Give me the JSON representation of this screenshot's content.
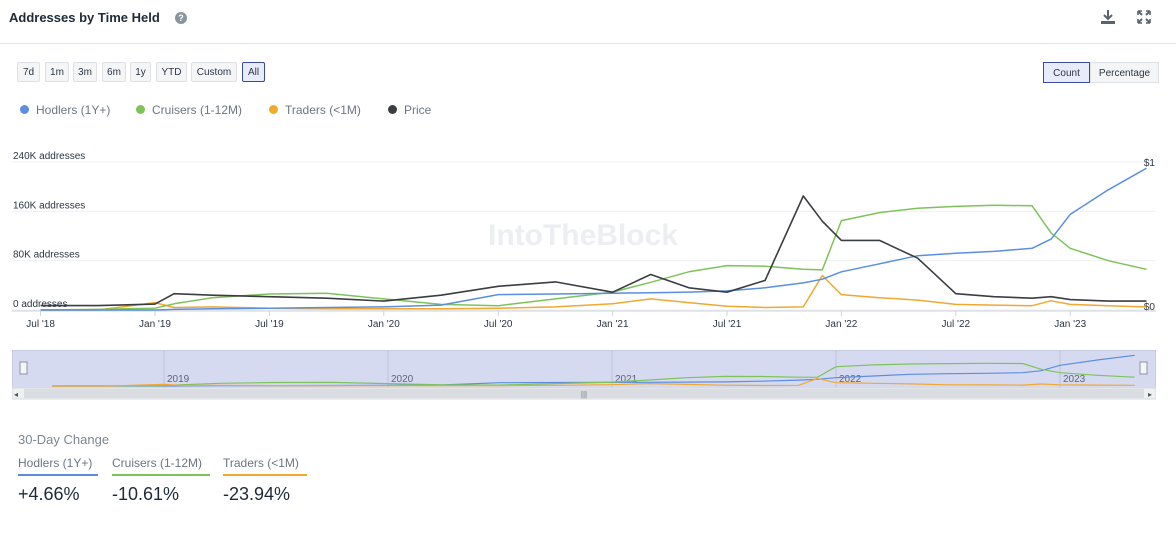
{
  "header": {
    "title": "Addresses by Time Held",
    "help_icon": "question-circle-icon",
    "download_icon": "download-icon",
    "expand_icon": "expand-icon"
  },
  "range_buttons": [
    "7d",
    "1m",
    "3m",
    "6m",
    "1y",
    "YTD",
    "Custom",
    "All"
  ],
  "range_selected": "All",
  "mode_buttons": [
    "Count",
    "Percentage"
  ],
  "mode_selected": "Count",
  "legend": [
    {
      "label": "Hodlers (1Y+)",
      "color": "#5b8ee0"
    },
    {
      "label": "Cruisers (1-12M)",
      "color": "#7ec35a"
    },
    {
      "label": "Traders (<1M)",
      "color": "#f0a830"
    },
    {
      "label": "Price",
      "color": "#3a3d42"
    }
  ],
  "watermark": "IntoTheBlock",
  "change": {
    "title": "30-Day Change",
    "items": [
      {
        "label": "Hodlers (1Y+)",
        "value": "+4.66%",
        "color": "#5b8ee0"
      },
      {
        "label": "Cruisers (1-12M)",
        "value": "-10.61%",
        "color": "#7ec35a"
      },
      {
        "label": "Traders (<1M)",
        "value": "-23.94%",
        "color": "#f0a830"
      }
    ]
  },
  "chart_data": {
    "type": "line",
    "xlabel": "",
    "ylabel": "",
    "x_ticks": [
      "Jul '18",
      "Jan '19",
      "Jul '19",
      "Jan '20",
      "Jul '20",
      "Jan '21",
      "Jul '21",
      "Jan '22",
      "Jul '22",
      "Jan '23"
    ],
    "y_ticks": [
      "0 addresses",
      "80K addresses",
      "160K addresses",
      "240K addresses"
    ],
    "y_tick_values": [
      0,
      80000,
      160000,
      240000
    ],
    "ylim": [
      0,
      240000
    ],
    "right_axis_ticks": [
      "$0",
      "$1"
    ],
    "right_axis_values": [
      0,
      1
    ],
    "grid": true,
    "legend_position": "top-left",
    "x": [
      "2018-07",
      "2018-10",
      "2019-01",
      "2019-02",
      "2019-04",
      "2019-07",
      "2019-10",
      "2020-01",
      "2020-04",
      "2020-07",
      "2020-10",
      "2021-01",
      "2021-03",
      "2021-05",
      "2021-07",
      "2021-09",
      "2021-11",
      "2021-12",
      "2022-01",
      "2022-03",
      "2022-05",
      "2022-07",
      "2022-09",
      "2022-11",
      "2022-12",
      "2023-01",
      "2023-03",
      "2023-05"
    ],
    "series": [
      {
        "name": "Hodlers (1Y+)",
        "axis": "left",
        "values": [
          0,
          0,
          0,
          1000,
          2000,
          3000,
          4000,
          5000,
          8000,
          25000,
          26000,
          27000,
          28000,
          29000,
          31000,
          36000,
          44000,
          50000,
          62000,
          75000,
          88000,
          92000,
          95000,
          100000,
          115000,
          155000,
          195000,
          230000
        ]
      },
      {
        "name": "Cruisers (1-12M)",
        "axis": "left",
        "values": [
          0,
          1000,
          3000,
          10000,
          20000,
          26000,
          27000,
          18000,
          9000,
          7000,
          18000,
          29000,
          45000,
          62000,
          72000,
          71000,
          66000,
          65000,
          145000,
          158000,
          165000,
          168000,
          170000,
          169000,
          125000,
          100000,
          80000,
          66000
        ]
      },
      {
        "name": "Traders (<1M)",
        "axis": "left",
        "values": [
          0,
          0,
          12000,
          4000,
          5000,
          3000,
          2000,
          2000,
          2000,
          3000,
          5000,
          10000,
          18000,
          12000,
          6000,
          4000,
          5000,
          56000,
          25000,
          20000,
          16000,
          9000,
          8000,
          7000,
          15000,
          9000,
          7000,
          5000
        ]
      },
      {
        "name": "Price",
        "axis": "right",
        "values": [
          0.03,
          0.03,
          0.04,
          0.11,
          0.1,
          0.09,
          0.08,
          0.06,
          0.1,
          0.16,
          0.19,
          0.12,
          0.24,
          0.15,
          0.12,
          0.2,
          0.77,
          0.6,
          0.47,
          0.47,
          0.35,
          0.11,
          0.09,
          0.08,
          0.09,
          0.07,
          0.06,
          0.06
        ]
      }
    ]
  }
}
